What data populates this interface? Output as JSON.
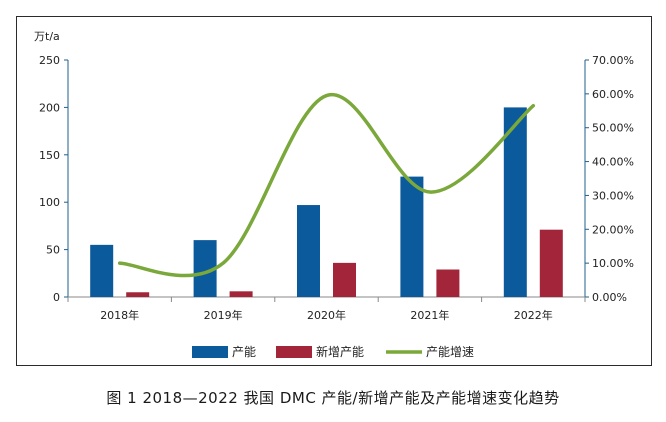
{
  "caption": "图 1  2018—2022 我国 DMC 产能/新增产能及产能增速变化趋势",
  "chart_data": {
    "type": "bar",
    "categories": [
      "2018年",
      "2019年",
      "2020年",
      "2021年",
      "2022年"
    ],
    "series": [
      {
        "name": "产能",
        "kind": "bar",
        "axis": "left",
        "color": "#0b5a9c",
        "values": [
          55,
          60,
          97,
          127,
          200
        ]
      },
      {
        "name": "新增产能",
        "kind": "bar",
        "axis": "left",
        "color": "#a3253a",
        "values": [
          5,
          6,
          36,
          29,
          71
        ]
      },
      {
        "name": "产能增速",
        "kind": "line",
        "axis": "right",
        "color": "#7aa83a",
        "values": [
          0.1,
          0.1,
          0.595,
          0.31,
          0.565
        ]
      }
    ],
    "y_left": {
      "unit": "万t/a",
      "min": 0,
      "max": 250,
      "ticks": [
        "0",
        "50",
        "100",
        "150",
        "200",
        "250"
      ]
    },
    "y_right": {
      "min": 0,
      "max": 0.7,
      "ticks": [
        "0.00%",
        "10.00%",
        "20.00%",
        "30.00%",
        "40.00%",
        "50.00%",
        "60.00%",
        "70.00%"
      ]
    },
    "legend_position": "bottom",
    "grid": false
  }
}
